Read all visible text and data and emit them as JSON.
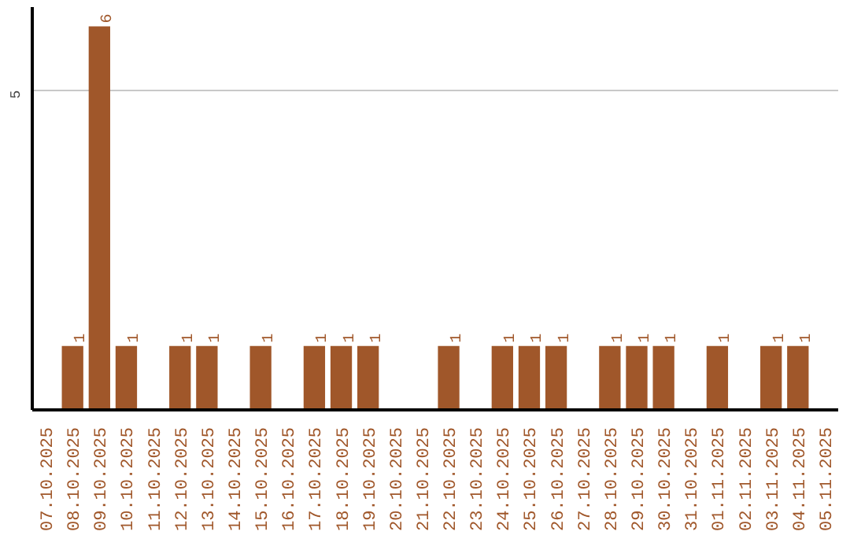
{
  "chart_data": {
    "type": "bar",
    "categories": [
      "07.10.2025",
      "08.10.2025",
      "09.10.2025",
      "10.10.2025",
      "11.10.2025",
      "12.10.2025",
      "13.10.2025",
      "14.10.2025",
      "15.10.2025",
      "16.10.2025",
      "17.10.2025",
      "18.10.2025",
      "19.10.2025",
      "20.10.2025",
      "21.10.2025",
      "22.10.2025",
      "23.10.2025",
      "24.10.2025",
      "25.10.2025",
      "26.10.2025",
      "27.10.2025",
      "28.10.2025",
      "29.10.2025",
      "30.10.2025",
      "31.10.2025",
      "01.11.2025",
      "02.11.2025",
      "03.11.2025",
      "04.11.2025",
      "05.11.2025"
    ],
    "values": [
      0,
      1,
      6,
      1,
      0,
      1,
      1,
      0,
      1,
      0,
      1,
      1,
      1,
      0,
      0,
      1,
      0,
      1,
      1,
      1,
      0,
      1,
      1,
      1,
      0,
      1,
      0,
      1,
      1,
      0
    ],
    "value_labels": [
      null,
      "1",
      "6",
      "1",
      null,
      "1",
      "1",
      null,
      "1",
      null,
      "1",
      "1",
      "1",
      null,
      null,
      "1",
      null,
      "1",
      "1",
      "1",
      null,
      "1",
      "1",
      "1",
      null,
      "1",
      null,
      "1",
      "1",
      null
    ],
    "color": "#a0572a",
    "ylim": [
      0,
      6.3
    ],
    "yticks": [
      5
    ],
    "grid": "y"
  }
}
